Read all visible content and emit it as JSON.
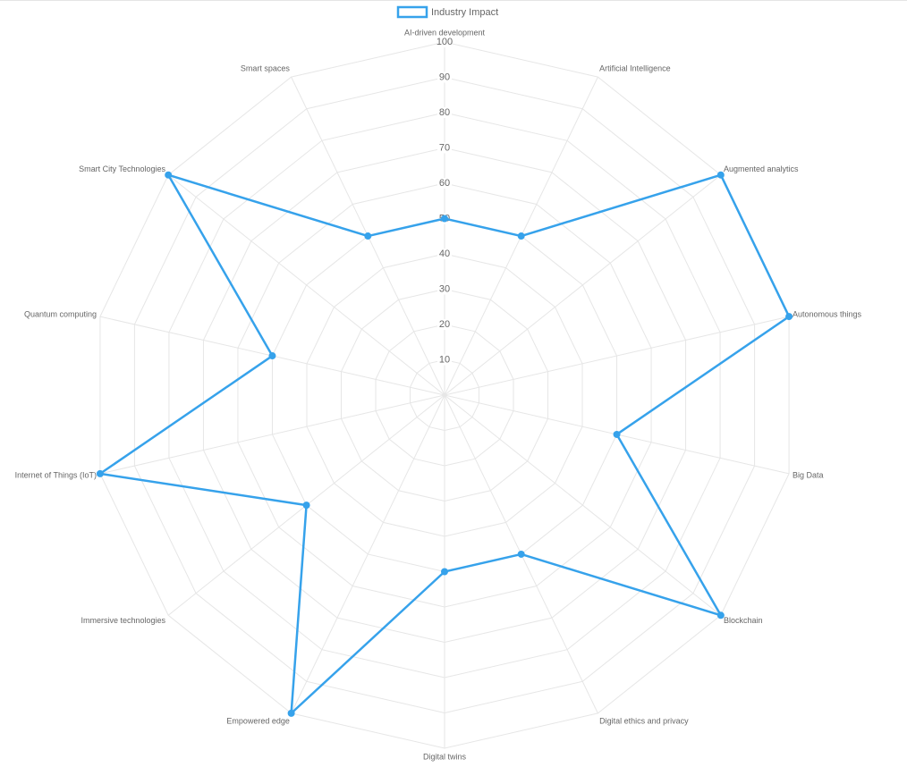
{
  "chart_data": {
    "type": "radar",
    "categories": [
      "AI-driven development",
      "Artificial Intelligence",
      "Augmented analytics",
      "Autonomous things",
      "Big Data",
      "Blockchain",
      "Digital ethics and privacy",
      "Digital twins",
      "Empowered edge",
      "Immersive technologies",
      "Internet of Things (IoT)",
      "Quantum computing",
      "Smart City Technologies",
      "Smart spaces"
    ],
    "series": [
      {
        "name": "Industry Impact",
        "color": "#36a2eb",
        "values": [
          50,
          50,
          100,
          100,
          50,
          100,
          50,
          50,
          100,
          50,
          100,
          50,
          100,
          50
        ]
      }
    ],
    "rlim": [
      0,
      100
    ],
    "rticks": [
      10,
      20,
      30,
      40,
      50,
      60,
      70,
      80,
      90,
      100
    ],
    "grid": true,
    "legend": "top"
  }
}
